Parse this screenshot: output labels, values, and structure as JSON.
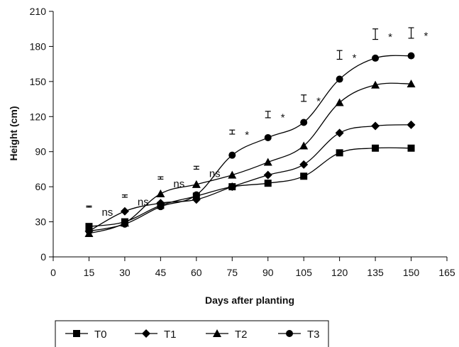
{
  "chart_data": {
    "type": "line",
    "xlabel": "Days after planting",
    "ylabel": "Height (cm)",
    "xlim": [
      0,
      165
    ],
    "ylim": [
      0,
      210
    ],
    "x_ticks": [
      0,
      15,
      30,
      45,
      60,
      75,
      90,
      105,
      120,
      135,
      150,
      165
    ],
    "y_ticks": [
      0,
      30,
      60,
      90,
      120,
      150,
      180,
      210
    ],
    "grid": false,
    "legend_position": "bottom",
    "x": [
      15,
      30,
      45,
      60,
      75,
      90,
      105,
      120,
      135,
      150
    ],
    "series": [
      {
        "name": "T0",
        "marker": "square",
        "values": [
          26,
          30,
          44,
          52,
          60,
          63,
          69,
          89,
          93,
          93
        ]
      },
      {
        "name": "T1",
        "marker": "diamond",
        "values": [
          22,
          39,
          46,
          49,
          60,
          70,
          79,
          106,
          112,
          113
        ]
      },
      {
        "name": "T2",
        "marker": "triangle",
        "values": [
          20,
          29,
          54,
          62,
          70,
          81,
          95,
          132,
          147,
          148
        ]
      },
      {
        "name": "T3",
        "marker": "circle",
        "values": [
          22,
          28,
          43,
          53,
          87,
          102,
          115,
          152,
          170,
          172
        ]
      }
    ],
    "significance": [
      {
        "x": 15,
        "label": "ns",
        "bar_low": 42.5,
        "bar_high": 43.5
      },
      {
        "x": 30,
        "label": "ns",
        "bar_low": 51,
        "bar_high": 53
      },
      {
        "x": 45,
        "label": "ns",
        "bar_low": 66.5,
        "bar_high": 68.5
      },
      {
        "x": 60,
        "label": "ns",
        "bar_low": 75,
        "bar_high": 77.5
      },
      {
        "x": 75,
        "label": "*",
        "bar_low": 105,
        "bar_high": 108.5
      },
      {
        "x": 90,
        "label": "*",
        "bar_low": 119,
        "bar_high": 124.5
      },
      {
        "x": 105,
        "label": "*",
        "bar_low": 133,
        "bar_high": 138.5
      },
      {
        "x": 120,
        "label": "*",
        "bar_low": 169,
        "bar_high": 176.5
      },
      {
        "x": 135,
        "label": "*",
        "bar_low": 186,
        "bar_high": 195
      },
      {
        "x": 150,
        "label": "*",
        "bar_low": 187,
        "bar_high": 196
      }
    ]
  }
}
